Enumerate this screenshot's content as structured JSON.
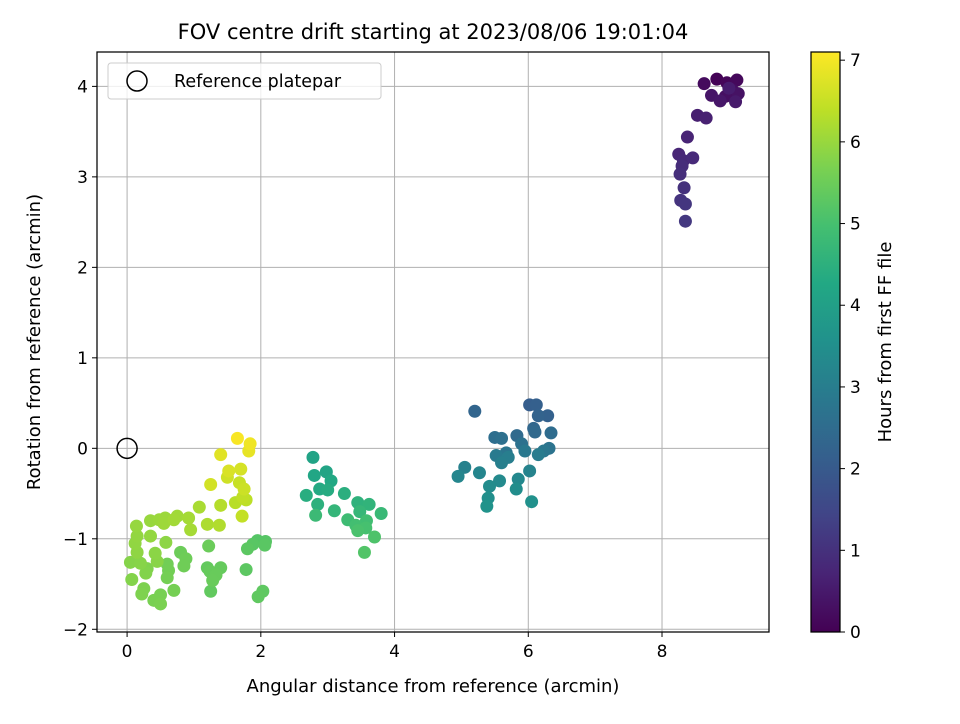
{
  "chart_data": {
    "type": "scatter",
    "title": "FOV centre drift starting at 2023/08/06 19:01:04",
    "xlabel": "Angular distance from reference (arcmin)",
    "ylabel": "Rotation from reference (arcmin)",
    "xlim": [
      -0.45,
      9.6
    ],
    "ylim": [
      -2.03,
      4.38
    ],
    "xticks": [
      0,
      2,
      4,
      6,
      8
    ],
    "yticks": [
      -2,
      -1,
      0,
      1,
      2,
      3,
      4
    ],
    "grid": true,
    "legend": {
      "placement": "top-left",
      "entries": [
        "Reference platepar"
      ]
    },
    "reference_point": {
      "x": 0,
      "y": 0
    },
    "colorbar": {
      "label": "Hours from first FF file",
      "colormap": "viridis",
      "range": [
        0,
        7.1
      ],
      "ticks": [
        0,
        1,
        2,
        3,
        4,
        5,
        6,
        7
      ]
    },
    "points": [
      {
        "x": 8.82,
        "y": 4.08,
        "c": 0.05
      },
      {
        "x": 8.97,
        "y": 4.04,
        "c": 0.1
      },
      {
        "x": 9.12,
        "y": 4.07,
        "c": 0.15
      },
      {
        "x": 8.63,
        "y": 4.03,
        "c": 0.2
      },
      {
        "x": 9.05,
        "y": 3.96,
        "c": 0.25
      },
      {
        "x": 8.95,
        "y": 3.89,
        "c": 0.3
      },
      {
        "x": 9.14,
        "y": 3.92,
        "c": 0.35
      },
      {
        "x": 8.74,
        "y": 3.9,
        "c": 0.4
      },
      {
        "x": 8.87,
        "y": 3.84,
        "c": 0.45
      },
      {
        "x": 9.1,
        "y": 3.83,
        "c": 0.5
      },
      {
        "x": 9.0,
        "y": 3.98,
        "c": 0.55
      },
      {
        "x": 8.53,
        "y": 3.68,
        "c": 0.6
      },
      {
        "x": 8.66,
        "y": 3.65,
        "c": 0.65
      },
      {
        "x": 8.38,
        "y": 3.44,
        "c": 0.7
      },
      {
        "x": 8.25,
        "y": 3.25,
        "c": 0.75
      },
      {
        "x": 8.32,
        "y": 3.18,
        "c": 0.8
      },
      {
        "x": 8.46,
        "y": 3.21,
        "c": 0.85
      },
      {
        "x": 8.3,
        "y": 3.12,
        "c": 0.9
      },
      {
        "x": 8.27,
        "y": 3.03,
        "c": 0.95
      },
      {
        "x": 8.33,
        "y": 2.88,
        "c": 1.0
      },
      {
        "x": 8.28,
        "y": 2.74,
        "c": 1.05
      },
      {
        "x": 8.35,
        "y": 2.7,
        "c": 1.1
      },
      {
        "x": 8.35,
        "y": 2.51,
        "c": 1.15
      },
      {
        "x": 6.02,
        "y": 0.48,
        "c": 2.1
      },
      {
        "x": 6.12,
        "y": 0.48,
        "c": 2.15
      },
      {
        "x": 6.29,
        "y": 0.36,
        "c": 2.2
      },
      {
        "x": 6.15,
        "y": 0.36,
        "c": 2.25
      },
      {
        "x": 5.2,
        "y": 0.41,
        "c": 2.3
      },
      {
        "x": 6.08,
        "y": 0.22,
        "c": 2.35
      },
      {
        "x": 6.1,
        "y": 0.18,
        "c": 2.4
      },
      {
        "x": 5.83,
        "y": 0.14,
        "c": 2.45
      },
      {
        "x": 6.34,
        "y": 0.17,
        "c": 2.5
      },
      {
        "x": 5.5,
        "y": 0.12,
        "c": 2.55
      },
      {
        "x": 5.6,
        "y": 0.11,
        "c": 2.6
      },
      {
        "x": 5.9,
        "y": 0.05,
        "c": 2.65
      },
      {
        "x": 6.31,
        "y": 0.0,
        "c": 2.7
      },
      {
        "x": 5.67,
        "y": -0.05,
        "c": 2.75
      },
      {
        "x": 6.23,
        "y": -0.03,
        "c": 2.8
      },
      {
        "x": 5.95,
        "y": -0.03,
        "c": 2.85
      },
      {
        "x": 5.52,
        "y": -0.08,
        "c": 2.9
      },
      {
        "x": 6.15,
        "y": -0.07,
        "c": 2.95
      },
      {
        "x": 5.7,
        "y": -0.1,
        "c": 3.0
      },
      {
        "x": 5.6,
        "y": -0.16,
        "c": 3.05
      },
      {
        "x": 5.05,
        "y": -0.21,
        "c": 3.1
      },
      {
        "x": 6.02,
        "y": -0.25,
        "c": 3.15
      },
      {
        "x": 5.27,
        "y": -0.27,
        "c": 3.2
      },
      {
        "x": 4.95,
        "y": -0.31,
        "c": 3.25
      },
      {
        "x": 5.85,
        "y": -0.34,
        "c": 3.3
      },
      {
        "x": 5.57,
        "y": -0.36,
        "c": 3.35
      },
      {
        "x": 5.42,
        "y": -0.42,
        "c": 3.4
      },
      {
        "x": 5.82,
        "y": -0.45,
        "c": 3.45
      },
      {
        "x": 5.4,
        "y": -0.55,
        "c": 3.5
      },
      {
        "x": 6.05,
        "y": -0.59,
        "c": 3.55
      },
      {
        "x": 5.38,
        "y": -0.64,
        "c": 3.6
      },
      {
        "x": 2.78,
        "y": -0.1,
        "c": 4.1
      },
      {
        "x": 2.98,
        "y": -0.26,
        "c": 4.15
      },
      {
        "x": 2.8,
        "y": -0.3,
        "c": 4.2
      },
      {
        "x": 3.05,
        "y": -0.36,
        "c": 4.25
      },
      {
        "x": 2.88,
        "y": -0.45,
        "c": 4.3
      },
      {
        "x": 3.0,
        "y": -0.46,
        "c": 4.35
      },
      {
        "x": 2.68,
        "y": -0.52,
        "c": 4.4
      },
      {
        "x": 3.25,
        "y": -0.5,
        "c": 4.45
      },
      {
        "x": 2.85,
        "y": -0.62,
        "c": 4.5
      },
      {
        "x": 3.45,
        "y": -0.6,
        "c": 4.55
      },
      {
        "x": 3.62,
        "y": -0.62,
        "c": 4.6
      },
      {
        "x": 3.1,
        "y": -0.69,
        "c": 4.65
      },
      {
        "x": 3.48,
        "y": -0.7,
        "c": 4.7
      },
      {
        "x": 3.8,
        "y": -0.72,
        "c": 4.75
      },
      {
        "x": 2.82,
        "y": -0.74,
        "c": 4.8
      },
      {
        "x": 3.3,
        "y": -0.79,
        "c": 4.85
      },
      {
        "x": 3.58,
        "y": -0.8,
        "c": 4.9
      },
      {
        "x": 3.42,
        "y": -0.85,
        "c": 4.95
      },
      {
        "x": 3.57,
        "y": -0.88,
        "c": 5.0
      },
      {
        "x": 3.45,
        "y": -0.91,
        "c": 5.05
      },
      {
        "x": 3.7,
        "y": -0.98,
        "c": 5.1
      },
      {
        "x": 3.55,
        "y": -1.15,
        "c": 5.15
      },
      {
        "x": 1.95,
        "y": -1.02,
        "c": 5.2
      },
      {
        "x": 2.07,
        "y": -1.03,
        "c": 5.22
      },
      {
        "x": 1.88,
        "y": -1.06,
        "c": 5.24
      },
      {
        "x": 2.06,
        "y": -1.07,
        "c": 5.26
      },
      {
        "x": 1.8,
        "y": -1.11,
        "c": 5.28
      },
      {
        "x": 1.78,
        "y": -1.34,
        "c": 5.3
      },
      {
        "x": 2.03,
        "y": -1.58,
        "c": 5.32
      },
      {
        "x": 1.96,
        "y": -1.64,
        "c": 5.34
      },
      {
        "x": 1.25,
        "y": -1.58,
        "c": 5.36
      },
      {
        "x": 1.2,
        "y": -1.32,
        "c": 5.38
      },
      {
        "x": 1.4,
        "y": -1.32,
        "c": 5.4
      },
      {
        "x": 1.24,
        "y": -1.36,
        "c": 5.42
      },
      {
        "x": 1.33,
        "y": -1.4,
        "c": 5.44
      },
      {
        "x": 1.28,
        "y": -1.46,
        "c": 5.46
      },
      {
        "x": 1.22,
        "y": -1.08,
        "c": 5.48
      },
      {
        "x": 0.8,
        "y": -1.15,
        "c": 5.5
      },
      {
        "x": 0.88,
        "y": -1.22,
        "c": 5.52
      },
      {
        "x": 0.85,
        "y": -1.3,
        "c": 5.54
      },
      {
        "x": 0.6,
        "y": -1.28,
        "c": 5.56
      },
      {
        "x": 0.62,
        "y": -1.35,
        "c": 5.58
      },
      {
        "x": 0.6,
        "y": -1.43,
        "c": 5.6
      },
      {
        "x": 0.7,
        "y": -1.57,
        "c": 5.62
      },
      {
        "x": 0.5,
        "y": -1.62,
        "c": 5.64
      },
      {
        "x": 0.4,
        "y": -1.68,
        "c": 5.66
      },
      {
        "x": 0.5,
        "y": -1.72,
        "c": 5.68
      },
      {
        "x": 0.25,
        "y": -1.55,
        "c": 5.7
      },
      {
        "x": 0.22,
        "y": -1.61,
        "c": 5.72
      },
      {
        "x": 0.3,
        "y": -1.33,
        "c": 5.74
      },
      {
        "x": 0.28,
        "y": -1.38,
        "c": 5.76
      },
      {
        "x": 0.07,
        "y": -1.45,
        "c": 5.78
      },
      {
        "x": 0.05,
        "y": -1.26,
        "c": 5.8
      },
      {
        "x": 0.2,
        "y": -1.27,
        "c": 5.82
      },
      {
        "x": 0.45,
        "y": -1.25,
        "c": 5.84
      },
      {
        "x": 0.42,
        "y": -1.16,
        "c": 5.86
      },
      {
        "x": 0.58,
        "y": -1.04,
        "c": 5.88
      },
      {
        "x": 0.15,
        "y": -1.15,
        "c": 5.9
      },
      {
        "x": 0.12,
        "y": -1.05,
        "c": 5.92
      },
      {
        "x": 0.15,
        "y": -0.97,
        "c": 5.94
      },
      {
        "x": 0.35,
        "y": -0.97,
        "c": 5.96
      },
      {
        "x": 0.14,
        "y": -0.86,
        "c": 5.98
      },
      {
        "x": 0.35,
        "y": -0.8,
        "c": 6.0
      },
      {
        "x": 0.48,
        "y": -0.79,
        "c": 6.02
      },
      {
        "x": 0.57,
        "y": -0.77,
        "c": 6.04
      },
      {
        "x": 0.55,
        "y": -0.83,
        "c": 6.06
      },
      {
        "x": 0.75,
        "y": -0.75,
        "c": 6.08
      },
      {
        "x": 0.7,
        "y": -0.79,
        "c": 6.1
      },
      {
        "x": 0.92,
        "y": -0.77,
        "c": 6.12
      },
      {
        "x": 0.95,
        "y": -0.9,
        "c": 6.14
      },
      {
        "x": 1.08,
        "y": -0.65,
        "c": 6.18
      },
      {
        "x": 1.2,
        "y": -0.84,
        "c": 6.22
      },
      {
        "x": 1.38,
        "y": -0.85,
        "c": 6.26
      },
      {
        "x": 1.4,
        "y": -0.63,
        "c": 6.3
      },
      {
        "x": 1.62,
        "y": -0.6,
        "c": 6.34
      },
      {
        "x": 1.78,
        "y": -0.57,
        "c": 6.38
      },
      {
        "x": 1.73,
        "y": -0.54,
        "c": 6.42
      },
      {
        "x": 1.72,
        "y": -0.75,
        "c": 6.46
      },
      {
        "x": 1.68,
        "y": -0.38,
        "c": 6.5
      },
      {
        "x": 1.75,
        "y": -0.45,
        "c": 6.54
      },
      {
        "x": 1.5,
        "y": -0.32,
        "c": 6.58
      },
      {
        "x": 1.25,
        "y": -0.4,
        "c": 6.62
      },
      {
        "x": 1.7,
        "y": -0.23,
        "c": 6.66
      },
      {
        "x": 1.52,
        "y": -0.25,
        "c": 6.7
      },
      {
        "x": 1.4,
        "y": -0.07,
        "c": 6.78
      },
      {
        "x": 1.82,
        "y": -0.03,
        "c": 6.86
      },
      {
        "x": 1.84,
        "y": 0.05,
        "c": 6.95
      },
      {
        "x": 1.65,
        "y": 0.11,
        "c": 7.05
      }
    ]
  }
}
